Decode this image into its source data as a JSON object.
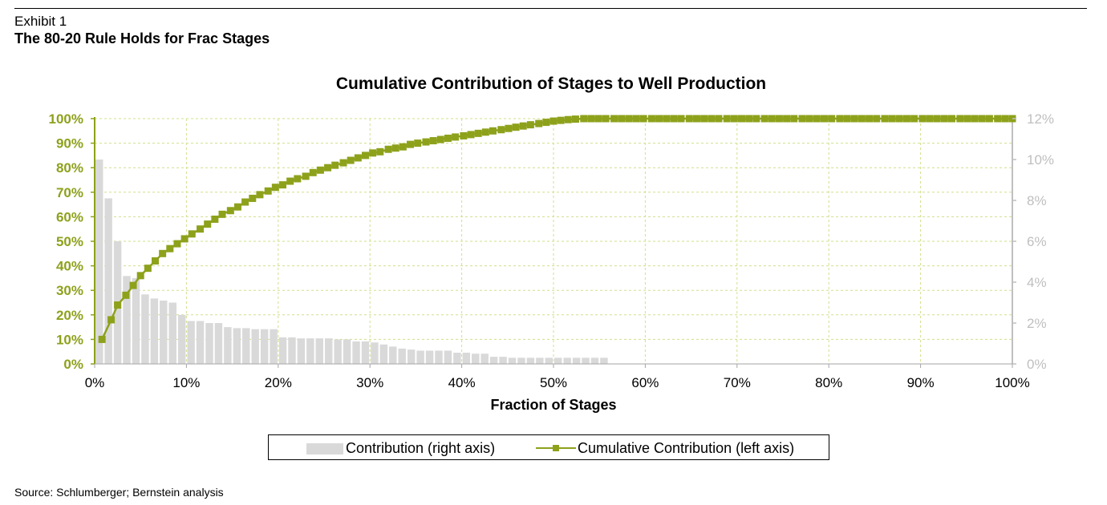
{
  "header": {
    "exhibit": "Exhibit 1",
    "subtitle": "The 80-20 Rule Holds for Frac Stages"
  },
  "footer": {
    "source": "Source: Schlumberger; Bernstein analysis"
  },
  "colors": {
    "bars": "#d9d9d9",
    "line": "#8ea11b",
    "left_axis_text": "#8ea11b",
    "right_axis_text": "#bfbfbf",
    "grid": "#cfe08a"
  },
  "chart_data": {
    "type": "bar",
    "title": "Cumulative Contribution of Stages to Well Production",
    "xlabel": "Fraction of Stages",
    "ylabel": "",
    "xlim": [
      0,
      100
    ],
    "x_ticks": [
      "0%",
      "10%",
      "20%",
      "30%",
      "40%",
      "50%",
      "60%",
      "70%",
      "80%",
      "90%",
      "100%"
    ],
    "left_axis": {
      "ylim": [
        0,
        100
      ],
      "ticks": [
        "0%",
        "10%",
        "20%",
        "30%",
        "40%",
        "50%",
        "60%",
        "70%",
        "80%",
        "90%",
        "100%"
      ]
    },
    "right_axis": {
      "ylim": [
        0,
        12
      ],
      "ticks": [
        "0%",
        "2%",
        "4%",
        "6%",
        "8%",
        "10%",
        "12%"
      ]
    },
    "grid": true,
    "legend_position": "bottom",
    "series": [
      {
        "name": "Contribution (right axis)",
        "type": "bar",
        "axis": "right",
        "x": [
          0.5,
          1.5,
          2.5,
          3.5,
          4.5,
          5.5,
          6.5,
          7.5,
          8.5,
          9.5,
          10.5,
          11.5,
          12.5,
          13.5,
          14.5,
          15.5,
          16.5,
          17.5,
          18.5,
          19.5,
          20.5,
          21.5,
          22.5,
          23.5,
          24.5,
          25.5,
          26.5,
          27.5,
          28.5,
          29.5,
          30.5,
          31.5,
          32.5,
          33.5,
          34.5,
          35.5,
          36.5,
          37.5,
          38.5,
          39.5,
          40.5,
          41.5,
          42.5,
          43.5,
          44.5,
          45.5,
          46.5,
          47.5,
          48.5,
          49.5,
          50.5,
          51.5,
          52.5,
          53.5,
          54.5,
          55.5
        ],
        "values": [
          10.0,
          8.1,
          6.0,
          4.3,
          4.2,
          3.4,
          3.2,
          3.1,
          3.0,
          2.4,
          2.1,
          2.1,
          2.0,
          2.0,
          1.8,
          1.75,
          1.75,
          1.7,
          1.7,
          1.7,
          1.3,
          1.3,
          1.25,
          1.25,
          1.25,
          1.25,
          1.2,
          1.2,
          1.1,
          1.1,
          1.05,
          0.95,
          0.85,
          0.75,
          0.7,
          0.65,
          0.65,
          0.65,
          0.65,
          0.55,
          0.55,
          0.5,
          0.5,
          0.35,
          0.35,
          0.3,
          0.3,
          0.3,
          0.3,
          0.3,
          0.3,
          0.3,
          0.3,
          0.3,
          0.3,
          0.3
        ]
      },
      {
        "name": "Cumulative Contribution (left axis)",
        "type": "line",
        "axis": "left",
        "x": [
          0.8,
          1.8,
          2.5,
          3.4,
          4.2,
          5.0,
          5.8,
          6.6,
          7.4,
          8.2,
          9.0,
          9.8,
          10.6,
          11.5,
          12.3,
          13.1,
          13.9,
          14.8,
          15.6,
          16.4,
          17.2,
          18.0,
          18.9,
          19.7,
          20.5,
          21.3,
          22.1,
          23.0,
          23.8,
          24.6,
          25.4,
          26.2,
          27.1,
          27.9,
          28.7,
          29.5,
          30.3,
          31.1,
          32.0,
          32.8,
          33.6,
          34.4,
          35.2,
          36.1,
          36.9,
          37.7,
          38.5,
          39.3,
          40.2,
          41.0,
          41.8,
          42.6,
          43.4,
          44.3,
          45.1,
          45.9,
          46.7,
          47.5,
          48.4,
          49.2,
          50.0,
          50.8,
          51.6,
          52.4,
          53.3,
          54.1,
          54.9,
          55.7,
          56.6,
          57.4,
          58.2,
          59.0,
          59.8,
          60.7,
          61.5,
          62.3,
          63.1,
          63.9,
          64.8,
          65.6,
          66.4,
          67.2,
          68.0,
          68.9,
          69.7,
          70.5,
          71.3,
          72.1,
          73.0,
          73.8,
          74.6,
          75.4,
          76.2,
          77.1,
          77.9,
          78.7,
          79.5,
          80.3,
          81.2,
          82.0,
          82.8,
          83.6,
          84.4,
          85.2,
          86.1,
          86.9,
          87.7,
          88.5,
          89.3,
          90.2,
          91.0,
          91.8,
          92.6,
          93.4,
          94.3,
          95.1,
          95.9,
          96.7,
          97.5,
          98.4,
          99.2,
          100.0
        ],
        "values": [
          10,
          18,
          24,
          28,
          32,
          36,
          39,
          42,
          45,
          47,
          49,
          51,
          53,
          55,
          57,
          59,
          61,
          62.5,
          64,
          66,
          67.5,
          69,
          70.5,
          72,
          73,
          74.5,
          75.5,
          76.5,
          78,
          79,
          80,
          81,
          82,
          83,
          84,
          85,
          86,
          86.5,
          87.5,
          88,
          88.5,
          89.5,
          90,
          90.5,
          91,
          91.5,
          92,
          92.5,
          93,
          93.5,
          94,
          94.5,
          95,
          95.5,
          96,
          96.5,
          97,
          97.5,
          98,
          98.5,
          99,
          99.3,
          99.6,
          99.8,
          100,
          100,
          100,
          100,
          100,
          100,
          100,
          100,
          100,
          100,
          100,
          100,
          100,
          100,
          100,
          100,
          100,
          100,
          100,
          100,
          100,
          100,
          100,
          100,
          100,
          100,
          100,
          100,
          100,
          100,
          100,
          100,
          100,
          100,
          100,
          100,
          100,
          100,
          100,
          100,
          100,
          100,
          100,
          100,
          100,
          100,
          100,
          100,
          100,
          100,
          100,
          100,
          100,
          100,
          100,
          100,
          100,
          100
        ]
      }
    ]
  }
}
